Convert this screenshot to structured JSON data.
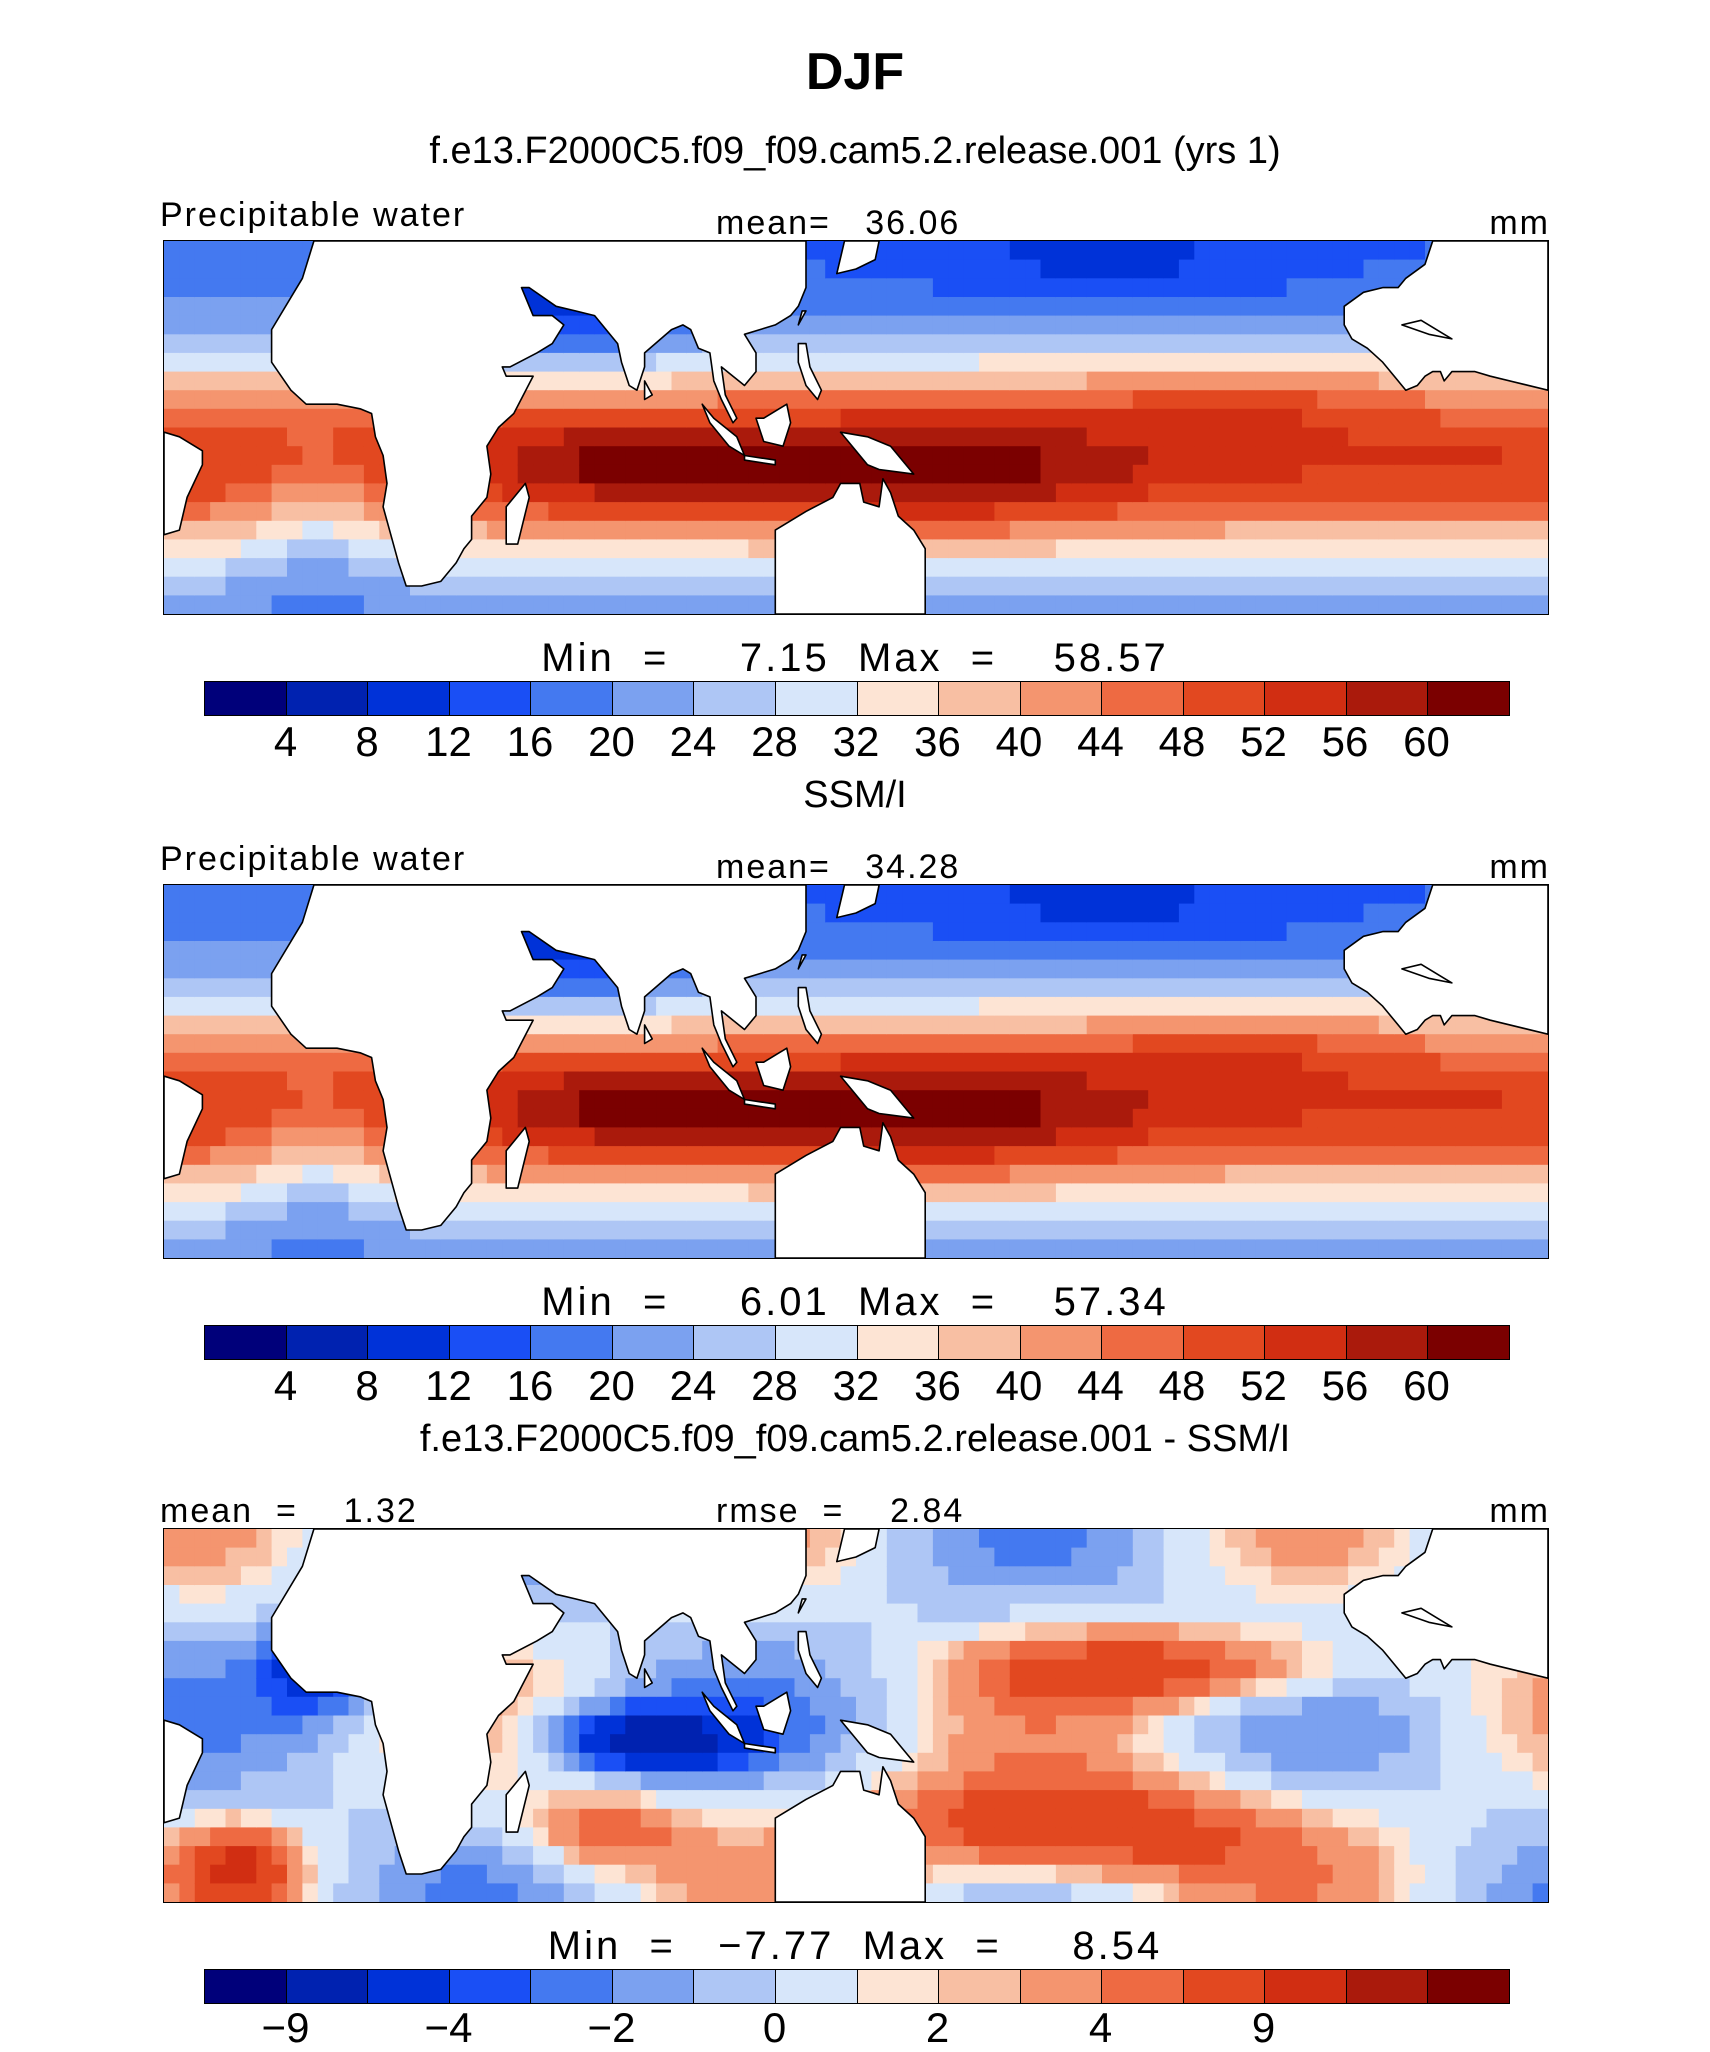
{
  "title": "DJF",
  "colors": {
    "scale": [
      "#00007a",
      "#0022b0",
      "#0032d8",
      "#1a4ff5",
      "#4479f0",
      "#7ba1f0",
      "#aec6f5",
      "#d7e6fa",
      "#fde4d4",
      "#f8bfa3",
      "#f4956f",
      "#ee6a42",
      "#e24820",
      "#d12e12",
      "#aa1a0c",
      "#7b0000"
    ],
    "land": "#ffffff",
    "coast": "#000000"
  },
  "panels": [
    {
      "title": "f.e13.F2000C5.f09_f09.cam5.2.release.001 (yrs 1)",
      "left_label": "Precipitable water",
      "center_label": "mean=   36.06",
      "right_label": "mm",
      "minmax": "Min  =     7.15  Max  =    58.57",
      "ticks": [
        "4",
        "8",
        "12",
        "16",
        "20",
        "24",
        "28",
        "32",
        "36",
        "40",
        "44",
        "48",
        "52",
        "56",
        "60"
      ],
      "kind": "mean"
    },
    {
      "title": "SSM/I",
      "left_label": "Precipitable water",
      "center_label": "mean=   34.28",
      "right_label": "mm",
      "minmax": "Min  =     6.01  Max  =    57.34",
      "ticks": [
        "4",
        "8",
        "12",
        "16",
        "20",
        "24",
        "28",
        "32",
        "36",
        "40",
        "44",
        "48",
        "52",
        "56",
        "60"
      ],
      "kind": "mean"
    },
    {
      "title": "f.e13.F2000C5.f09_f09.cam5.2.release.001 - SSM/I",
      "left_label": "mean  =    1.32",
      "center_label": "rmse  =    2.84",
      "right_label": "mm",
      "minmax": "Min  =   −7.77  Max  =     8.54",
      "ticks": [
        "−9",
        "",
        "−4",
        "",
        "−2",
        "",
        "0",
        "",
        "2",
        "",
        "4",
        "",
        "9"
      ],
      "kind": "diff"
    }
  ]
}
